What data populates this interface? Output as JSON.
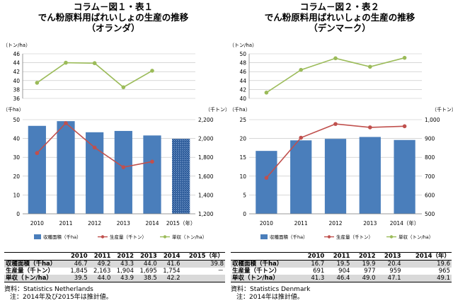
{
  "panels": [
    {
      "title1": "コラム－図１・表１",
      "title2": "でん粉原料用ばれいしょの生産の推移",
      "title3": "（オランダ）",
      "top_chart": {
        "ylabel": "（トン/ha）",
        "yticks": [
          "36",
          "38",
          "40",
          "42",
          "44",
          "46"
        ],
        "ylim": [
          36,
          46
        ]
      },
      "bottom_chart": {
        "left_unit": "（千ha）",
        "right_unit": "（千トン）",
        "left_ticks": [
          "0",
          "10",
          "20",
          "30",
          "40",
          "50"
        ],
        "right_ticks": [
          "1,200",
          "1,400",
          "1,600",
          "1,800",
          "2,000",
          "2,200"
        ],
        "left_lim": [
          0,
          50
        ],
        "right_lim": [
          1200,
          2200
        ],
        "xticks": [
          "2010",
          "2011",
          "2012",
          "2013",
          "2014",
          "2015（年）"
        ]
      },
      "legend": {
        "area": "収穫面積（千ha）",
        "production": "生産量（千トン）",
        "yield": "単収（トン/ha）"
      },
      "table": {
        "headers": [
          "",
          "2010",
          "2011",
          "2012",
          "2013",
          "2014",
          "2015（年）"
        ],
        "rows": [
          {
            "label": "収穫面積（千ha）",
            "cells": [
              "46.7",
              "49.2",
              "43.3",
              "44.0",
              "41.6",
              "39.8"
            ]
          },
          {
            "label": "生産量（千トン）",
            "cells": [
              "1,845",
              "2,163",
              "1,904",
              "1,695",
              "1,754",
              "－"
            ]
          },
          {
            "label": "単収（トン/ha）",
            "cells": [
              "39.5",
              "44.0",
              "43.9",
              "38.5",
              "42.2",
              ""
            ]
          }
        ]
      },
      "source": "資料：Statistics Netherlands",
      "note": "注：2014年及び2015年は推計値。"
    },
    {
      "title1": "コラム－図２・表２",
      "title2": "でん粉原料用ばれいしょの生産の推移",
      "title3": "（デンマーク）",
      "top_chart": {
        "ylabel": "（トン/ha）",
        "yticks": [
          "40",
          "42",
          "44",
          "46",
          "48",
          "50"
        ],
        "ylim": [
          40,
          50
        ]
      },
      "bottom_chart": {
        "left_unit": "（千ha）",
        "right_unit": "（千トン）",
        "left_ticks": [
          "0",
          "5",
          "10",
          "15",
          "20",
          "25"
        ],
        "right_ticks": [
          "500",
          "600",
          "700",
          "800",
          "900",
          "1,000"
        ],
        "left_lim": [
          0,
          25
        ],
        "right_lim": [
          500,
          1000
        ],
        "xticks": [
          "2010",
          "2011",
          "2012",
          "2013",
          "2014（年）"
        ]
      },
      "legend": {
        "area": "収穫面積（千ha）",
        "production": "生産量（千トン）",
        "yield": "単収（トン/ha）"
      },
      "table": {
        "headers": [
          "",
          "2010",
          "2011",
          "2012",
          "2013",
          "2014（年）"
        ],
        "rows": [
          {
            "label": "収穫面積（千ha）",
            "cells": [
              "16.7",
              "19.5",
              "19.9",
              "20.4",
              "19.6"
            ]
          },
          {
            "label": "生産量（千トン）",
            "cells": [
              "691",
              "904",
              "977",
              "959",
              "965"
            ]
          },
          {
            "label": "単収（トン/ha）",
            "cells": [
              "41.3",
              "46.4",
              "49.0",
              "47.1",
              "49.1"
            ]
          }
        ]
      },
      "source": "資料：Statistics Denmark",
      "note": "注：2014年は推計値。"
    }
  ],
  "colors": {
    "bar": "#4a7ebb",
    "bar_estimate": "#2e5c9a",
    "production": "#c0504d",
    "yield": "#9bbb59",
    "grid": "#bfbfbf"
  },
  "chart_data": [
    {
      "type": "bar",
      "categories": [
        "2010",
        "2011",
        "2012",
        "2013",
        "2014",
        "2015"
      ],
      "series": [
        {
          "name": "収穫面積（千ha）",
          "values": [
            46.7,
            49.2,
            43.3,
            44.0,
            41.6,
            39.8
          ]
        },
        {
          "name": "生産量（千トン）",
          "values": [
            1845,
            2163,
            1904,
            1695,
            1754,
            null
          ],
          "axis": "right"
        },
        {
          "name": "単収（トン/ha）",
          "values": [
            39.5,
            44.0,
            43.9,
            38.5,
            42.2,
            null
          ]
        }
      ],
      "title": "コラム－図１・表１ でん粉原料用ばれいしょの生産の推移（オランダ）"
    },
    {
      "type": "bar",
      "categories": [
        "2010",
        "2011",
        "2012",
        "2013",
        "2014"
      ],
      "series": [
        {
          "name": "収穫面積（千ha）",
          "values": [
            16.7,
            19.5,
            19.9,
            20.4,
            19.6
          ]
        },
        {
          "name": "生産量（千トン）",
          "values": [
            691,
            904,
            977,
            959,
            965
          ],
          "axis": "right"
        },
        {
          "name": "単収（トン/ha）",
          "values": [
            41.3,
            46.4,
            49.0,
            47.1,
            49.1
          ]
        }
      ],
      "title": "コラム－図２・表２ でん粉原料用ばれいしょの生産の推移（デンマーク）"
    }
  ]
}
